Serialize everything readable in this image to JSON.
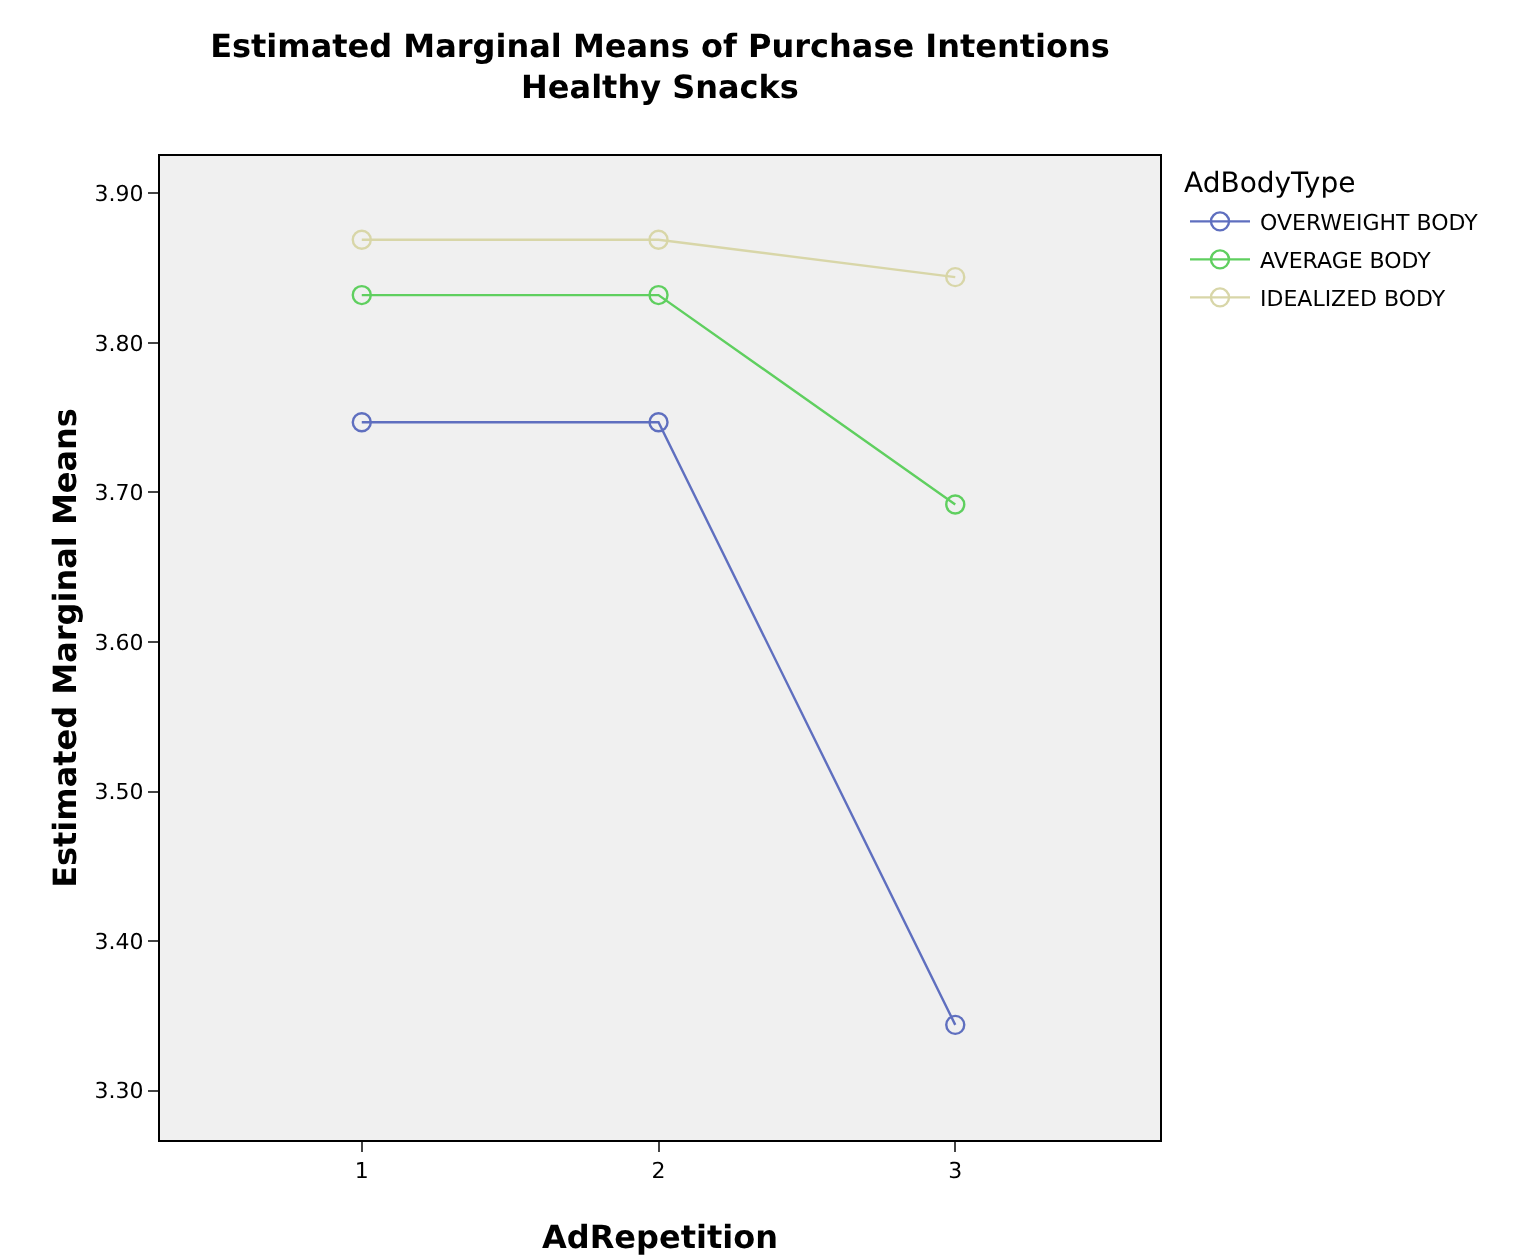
{
  "chart_data": {
    "type": "line",
    "title": "Estimated Marginal Means of Purchase Intentions",
    "subtitle": "Healthy Snacks",
    "xlabel": "AdRepetition",
    "ylabel": "Estimated Marginal Means",
    "legend_title": "AdBodyType",
    "x": [
      1,
      2,
      3
    ],
    "xlim": [
      0.32,
      3.69
    ],
    "xticks": [
      1,
      2,
      3
    ],
    "ylim": [
      3.267,
      3.925
    ],
    "yticks": [
      {
        "value": 3.3,
        "label": "3.30"
      },
      {
        "value": 3.4,
        "label": "3.40"
      },
      {
        "value": 3.5,
        "label": "3.50"
      },
      {
        "value": 3.6,
        "label": "3.60"
      },
      {
        "value": 3.7,
        "label": "3.70"
      },
      {
        "value": 3.8,
        "label": "3.80"
      },
      {
        "value": 3.9,
        "label": "3.90"
      }
    ],
    "series": [
      {
        "name": "OVERWEIGHT BODY",
        "color": "#5f6fbf",
        "values": [
          3.747,
          3.747,
          3.344
        ]
      },
      {
        "name": "AVERAGE BODY",
        "color": "#5fcf5f",
        "values": [
          3.832,
          3.832,
          3.692
        ]
      },
      {
        "name": "IDEALIZED BODY",
        "color": "#d8d6a8",
        "values": [
          3.869,
          3.869,
          3.844
        ]
      }
    ],
    "marker": "circle",
    "grid": false,
    "legend": "top right"
  }
}
